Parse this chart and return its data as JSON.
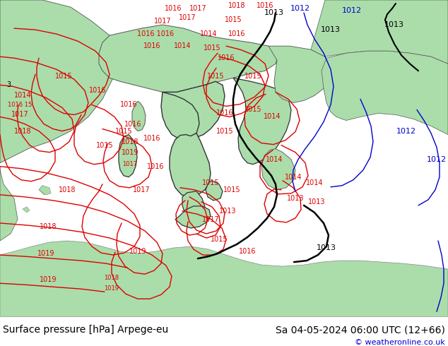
{
  "title_left": "Surface pressure [hPa] Arpege-eu",
  "title_right": "Sa 04-05-2024 06:00 UTC (12+66)",
  "copyright": "© weatheronline.co.uk",
  "land_color": "#aaddaa",
  "sea_color": "#c8c8c8",
  "bottom_bar_color": "#ffffff",
  "left_text_color": "#000000",
  "right_text_color": "#000000",
  "copyright_color": "#0000cc",
  "red": "#dd0000",
  "black": "#000000",
  "blue": "#0000cc",
  "font_size_bottom": 10,
  "font_size_copyright": 8,
  "font_size_label": 7
}
